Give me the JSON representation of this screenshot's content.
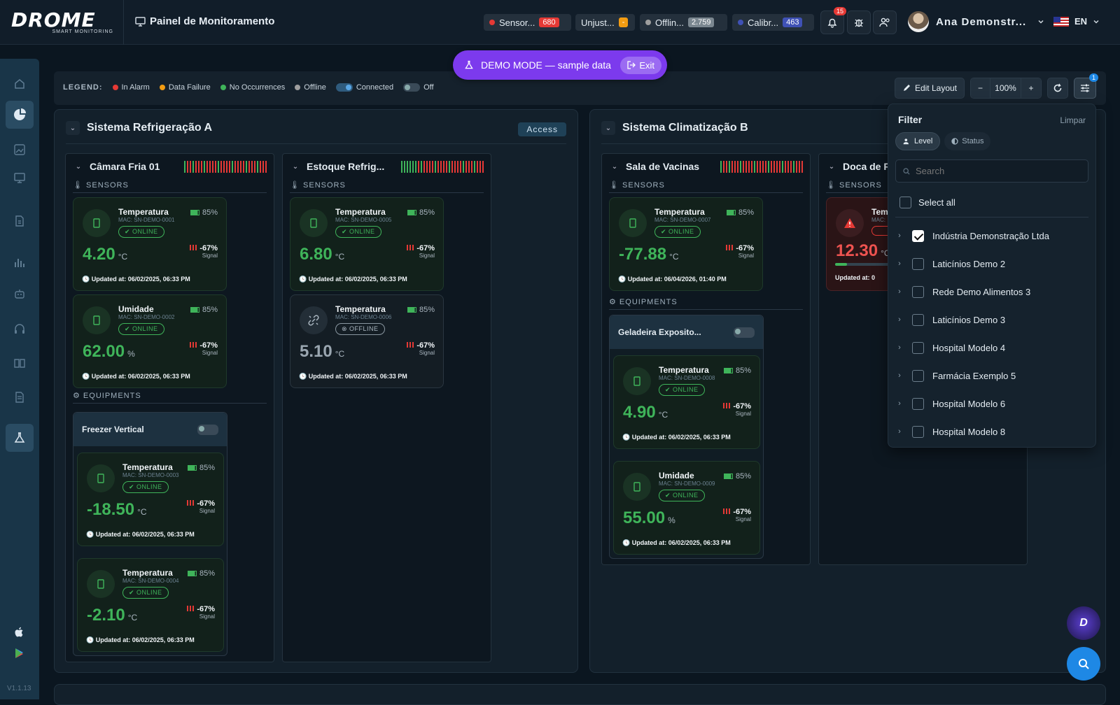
{
  "app": {
    "logo_text": "DROME",
    "logo_sub": "SMART MONITORING",
    "page_title": "Painel de Monitoramento",
    "version": "V1.1.13"
  },
  "status_chips": [
    {
      "label": "Sensor...",
      "count": "680",
      "dot_color": "#e53935",
      "count_color": "#e53935"
    },
    {
      "label": "Unjust...",
      "count": "-",
      "dot_color": "",
      "count_color": "#f39c12"
    },
    {
      "label": "Offlin...",
      "count": "2.759",
      "dot_color": "#9e9e9e",
      "count_color": "#7b8790"
    },
    {
      "label": "Calibr...",
      "count": "463",
      "dot_color": "#3f51b5",
      "count_color": "#3f51b5"
    }
  ],
  "header": {
    "notifications_count": "15",
    "user_name": "Ana Demonstr...",
    "language": "EN"
  },
  "demo": {
    "text": "DEMO MODE — sample data",
    "exit_label": "Exit"
  },
  "legend": {
    "title": "LEGEND:",
    "items": [
      {
        "label": "In Alarm",
        "color": "#e53935"
      },
      {
        "label": "Data Failure",
        "color": "#f39c12"
      },
      {
        "label": "No Occurrences",
        "color": "#3fb45a"
      },
      {
        "label": "Offline",
        "color": "#9e9e9e"
      }
    ],
    "connected_label": "Connected",
    "off_label": "Off"
  },
  "toolbar": {
    "edit_layout": "Edit Layout",
    "zoom": "100%",
    "filter_count": "1"
  },
  "groups": [
    {
      "title": "Sistema Refrigeração A",
      "access_label": "Access",
      "columns": [
        {
          "title": "Câmara Fria 01",
          "sensors_label": "SENSORS",
          "equipments_label": "EQUIPMENTS",
          "sensors": [
            {
              "type": "Temperatura",
              "mac": "MAC: SN-DEMO-0001",
              "status": "ONLINE",
              "battery": "85%",
              "value": "4.20",
              "unit": "°C",
              "signal": "-67%",
              "signal_label": "Signal",
              "updated": "Updated at: 06/02/2025, 06:33 PM"
            },
            {
              "type": "Umidade",
              "mac": "MAC: SN-DEMO-0002",
              "status": "ONLINE",
              "battery": "85%",
              "value": "62.00",
              "unit": "%",
              "signal": "-67%",
              "signal_label": "Signal",
              "updated": "Updated at: 06/02/2025, 06:33 PM"
            }
          ],
          "equipment": {
            "name": "Freezer Vertical",
            "sensors": [
              {
                "type": "Temperatura",
                "mac": "MAC: SN-DEMO-0003",
                "status": "ONLINE",
                "battery": "85%",
                "value": "-18.50",
                "unit": "°C",
                "signal": "-67%",
                "signal_label": "Signal",
                "updated": "Updated at: 06/02/2025, 06:33 PM"
              },
              {
                "type": "Temperatura",
                "mac": "MAC: SN-DEMO-0004",
                "status": "ONLINE",
                "battery": "85%",
                "value": "-2.10",
                "unit": "°C",
                "signal": "-67%",
                "signal_label": "Signal",
                "updated": "Updated at: 06/02/2025, 06:33 PM"
              }
            ]
          }
        },
        {
          "title": "Estoque Refrig...",
          "sensors_label": "SENSORS",
          "sensors": [
            {
              "type": "Temperatura",
              "mac": "MAC: SN-DEMO-0005",
              "status": "ONLINE",
              "battery": "85%",
              "value": "6.80",
              "unit": "°C",
              "signal": "-67%",
              "signal_label": "Signal",
              "updated": "Updated at: 06/02/2025, 06:33 PM"
            },
            {
              "type": "Temperatura",
              "mac": "MAC: SN-DEMO-0006",
              "status": "OFFLINE",
              "battery": "85%",
              "value": "5.10",
              "unit": "°C",
              "signal": "-67%",
              "signal_label": "Signal",
              "updated": "Updated at: 06/02/2025, 06:33 PM"
            }
          ]
        }
      ]
    },
    {
      "title": "Sistema Climatização B",
      "columns": [
        {
          "title": "Sala de Vacinas",
          "sensors_label": "SENSORS",
          "equipments_label": "EQUIPMENTS",
          "sensors": [
            {
              "type": "Temperatura",
              "mac": "MAC: SN-DEMO-0007",
              "status": "ONLINE",
              "battery": "85%",
              "value": "-77.88",
              "unit": "°C",
              "signal": "-67%",
              "signal_label": "Signal",
              "updated": "Updated at: 06/04/2026, 01:40 PM"
            }
          ],
          "equipment": {
            "name": "Geladeira Exposito...",
            "sensors": [
              {
                "type": "Temperatura",
                "mac": "MAC: SN-DEMO-0008",
                "status": "ONLINE",
                "battery": "85%",
                "value": "4.90",
                "unit": "°C",
                "signal": "-67%",
                "signal_label": "Signal",
                "updated": "Updated at: 06/02/2025, 06:33 PM"
              },
              {
                "type": "Umidade",
                "mac": "MAC: SN-DEMO-0009",
                "status": "ONLINE",
                "battery": "85%",
                "value": "55.00",
                "unit": "%",
                "signal": "-67%",
                "signal_label": "Signal",
                "updated": "Updated at: 06/02/2025, 06:33 PM"
              }
            ]
          }
        },
        {
          "title": "Doca de R",
          "sensors_label": "SENSORS",
          "sensors": [
            {
              "type": "Tem",
              "mac": "MAC:",
              "status": "",
              "value": "12.30",
              "unit": "°C",
              "updated": "Updated at: 0"
            }
          ]
        }
      ]
    }
  ],
  "filter": {
    "title": "Filter",
    "clear_label": "Limpar",
    "tabs": [
      {
        "label": "Level"
      },
      {
        "label": "Status"
      }
    ],
    "search_placeholder": "Search",
    "select_all": "Select all",
    "items": [
      {
        "label": "Indústria Demonstração Ltda",
        "checked": true
      },
      {
        "label": "Laticínios Demo 2",
        "checked": false
      },
      {
        "label": "Rede Demo Alimentos 3",
        "checked": false
      },
      {
        "label": "Laticínios Demo 3",
        "checked": false
      },
      {
        "label": "Hospital Modelo 4",
        "checked": false
      },
      {
        "label": "Farmácia Exemplo 5",
        "checked": false
      },
      {
        "label": "Hospital Modelo 6",
        "checked": false
      },
      {
        "label": "Hospital Modelo 8",
        "checked": false
      }
    ]
  }
}
